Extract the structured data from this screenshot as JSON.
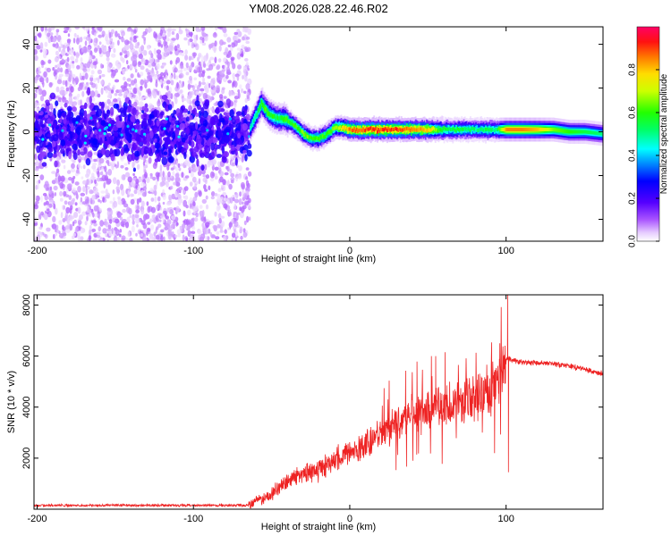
{
  "title": "YM08.2026.028.22.46.R02",
  "chart_data": [
    {
      "type": "heatmap",
      "name": "spectrogram",
      "xlabel": "Height of straight line (km)",
      "ylabel": "Frequency (Hz)",
      "xlim": [
        -202,
        162
      ],
      "ylim": [
        -50,
        48
      ],
      "xticks": [
        -200,
        -100,
        0,
        100
      ],
      "yticks": [
        -40,
        -20,
        0,
        20,
        40
      ],
      "colorbar": {
        "label": "Normalized spectral amplitude",
        "range": [
          0,
          1
        ],
        "ticks": [
          0.0,
          0.2,
          0.4,
          0.6,
          0.8
        ]
      },
      "noise_region_x": [
        -202,
        -64
      ],
      "ridge": [
        {
          "x": -64,
          "f": 2,
          "a": 0.45
        },
        {
          "x": -60,
          "f": 8,
          "a": 0.5
        },
        {
          "x": -57,
          "f": 13,
          "a": 0.6
        },
        {
          "x": -52,
          "f": 8,
          "a": 0.6
        },
        {
          "x": -47,
          "f": 6,
          "a": 0.55
        },
        {
          "x": -42,
          "f": 6,
          "a": 0.6
        },
        {
          "x": -38,
          "f": 4,
          "a": 0.6
        },
        {
          "x": -34,
          "f": 2,
          "a": 0.6
        },
        {
          "x": -30,
          "f": -1,
          "a": 0.65
        },
        {
          "x": -25,
          "f": -3,
          "a": 0.6
        },
        {
          "x": -20,
          "f": -3,
          "a": 0.6
        },
        {
          "x": -15,
          "f": -1,
          "a": 0.6
        },
        {
          "x": -10,
          "f": 2,
          "a": 0.65
        },
        {
          "x": -5,
          "f": 2,
          "a": 0.75
        },
        {
          "x": 0,
          "f": 1,
          "a": 0.85
        },
        {
          "x": 10,
          "f": 1,
          "a": 0.9
        },
        {
          "x": 20,
          "f": 1,
          "a": 0.9
        },
        {
          "x": 30,
          "f": 1,
          "a": 0.9
        },
        {
          "x": 40,
          "f": 1,
          "a": 0.85
        },
        {
          "x": 50,
          "f": 1,
          "a": 0.8
        },
        {
          "x": 55,
          "f": 1,
          "a": 0.65
        },
        {
          "x": 60,
          "f": 1,
          "a": 0.55
        },
        {
          "x": 70,
          "f": 1,
          "a": 0.55
        },
        {
          "x": 80,
          "f": 1,
          "a": 0.5
        },
        {
          "x": 88,
          "f": 1,
          "a": 0.55
        },
        {
          "x": 93,
          "f": 1,
          "a": 0.5
        },
        {
          "x": 100,
          "f": 1,
          "a": 0.85
        },
        {
          "x": 110,
          "f": 1,
          "a": 0.85
        },
        {
          "x": 120,
          "f": 1,
          "a": 0.8
        },
        {
          "x": 130,
          "f": 1,
          "a": 0.65
        },
        {
          "x": 140,
          "f": 0,
          "a": 0.6
        },
        {
          "x": 150,
          "f": 0,
          "a": 0.55
        },
        {
          "x": 162,
          "f": -1,
          "a": 0.5
        }
      ]
    },
    {
      "type": "line",
      "name": "snr",
      "xlabel": "Height of straight line (km)",
      "ylabel": "SNR (10 * v/v)",
      "xlim": [
        -202,
        162
      ],
      "ylim": [
        0,
        8400
      ],
      "xticks": [
        -200,
        -100,
        0,
        100
      ],
      "yticks": [
        2000,
        4000,
        6000,
        8000
      ],
      "color": "#ee2222",
      "trend": [
        {
          "x": -202,
          "y": 150
        },
        {
          "x": -65,
          "y": 150
        },
        {
          "x": -50,
          "y": 600
        },
        {
          "x": -40,
          "y": 1100
        },
        {
          "x": -30,
          "y": 1350
        },
        {
          "x": -20,
          "y": 1550
        },
        {
          "x": -10,
          "y": 1900
        },
        {
          "x": 0,
          "y": 2200
        },
        {
          "x": 10,
          "y": 2500
        },
        {
          "x": 20,
          "y": 3000
        },
        {
          "x": 30,
          "y": 3400
        },
        {
          "x": 40,
          "y": 3700
        },
        {
          "x": 50,
          "y": 3900
        },
        {
          "x": 60,
          "y": 4000
        },
        {
          "x": 70,
          "y": 4200
        },
        {
          "x": 80,
          "y": 4400
        },
        {
          "x": 90,
          "y": 4600
        },
        {
          "x": 96,
          "y": 5000
        },
        {
          "x": 100,
          "y": 5900
        },
        {
          "x": 110,
          "y": 5750
        },
        {
          "x": 130,
          "y": 5700
        },
        {
          "x": 145,
          "y": 5550
        },
        {
          "x": 162,
          "y": 5300
        }
      ],
      "spikes": [
        {
          "x": 55,
          "y": 6000
        },
        {
          "x": 61,
          "y": 6150
        },
        {
          "x": 96,
          "y": 6500
        },
        {
          "x": 101,
          "y": 8400
        },
        {
          "x": 101.5,
          "y": 1450
        }
      ]
    }
  ]
}
